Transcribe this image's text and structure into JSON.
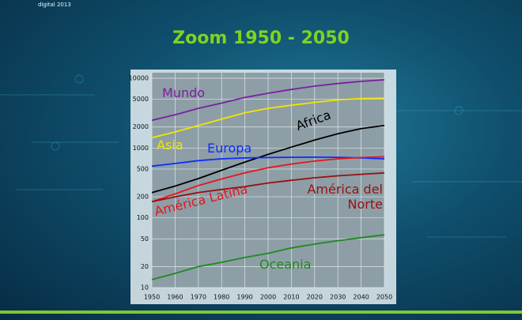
{
  "brand_subtitle": "digital 2013",
  "chart_data": {
    "type": "line",
    "title": "Zoom 1950 - 2050",
    "log_y": true,
    "grid": true,
    "x": [
      1950,
      1960,
      1970,
      1980,
      1990,
      2000,
      2010,
      2020,
      2030,
      2040,
      2050
    ],
    "series": [
      {
        "name": "Mundo",
        "color": "#7a1fa0",
        "values": [
          2500,
          3000,
          3700,
          4400,
          5300,
          6100,
          6900,
          7700,
          8400,
          9000,
          9500
        ]
      },
      {
        "name": "Asia",
        "color": "#f2e600",
        "values": [
          1400,
          1700,
          2100,
          2600,
          3200,
          3700,
          4100,
          4500,
          4900,
          5100,
          5200
        ]
      },
      {
        "name": "Africa",
        "color": "#000000",
        "values": [
          230,
          285,
          365,
          480,
          630,
          810,
          1030,
          1300,
          1600,
          1900,
          2100
        ]
      },
      {
        "name": "Europa",
        "color": "#0a2cff",
        "values": [
          550,
          600,
          660,
          700,
          720,
          730,
          735,
          740,
          735,
          720,
          700
        ]
      },
      {
        "name": "América Latina",
        "color": "#e8141c",
        "values": [
          170,
          220,
          290,
          360,
          440,
          520,
          590,
          650,
          700,
          730,
          750
        ]
      },
      {
        "name": "América del Norte",
        "color": "#9a1010",
        "values": [
          170,
          200,
          230,
          255,
          280,
          315,
          345,
          375,
          400,
          420,
          440
        ]
      },
      {
        "name": "Oceania",
        "color": "#1e8a1e",
        "values": [
          13,
          16,
          20,
          23,
          27,
          31,
          37,
          42,
          47,
          52,
          57
        ]
      }
    ],
    "xlim": [
      1950,
      2050
    ],
    "ylim": [
      10,
      12000
    ],
    "xticks": [
      1950,
      1960,
      1970,
      1980,
      1990,
      2000,
      2010,
      2020,
      2030,
      2040,
      2050
    ],
    "yticks": [
      10,
      20,
      50,
      100,
      200,
      500,
      1000,
      2000,
      5000,
      10000
    ]
  }
}
